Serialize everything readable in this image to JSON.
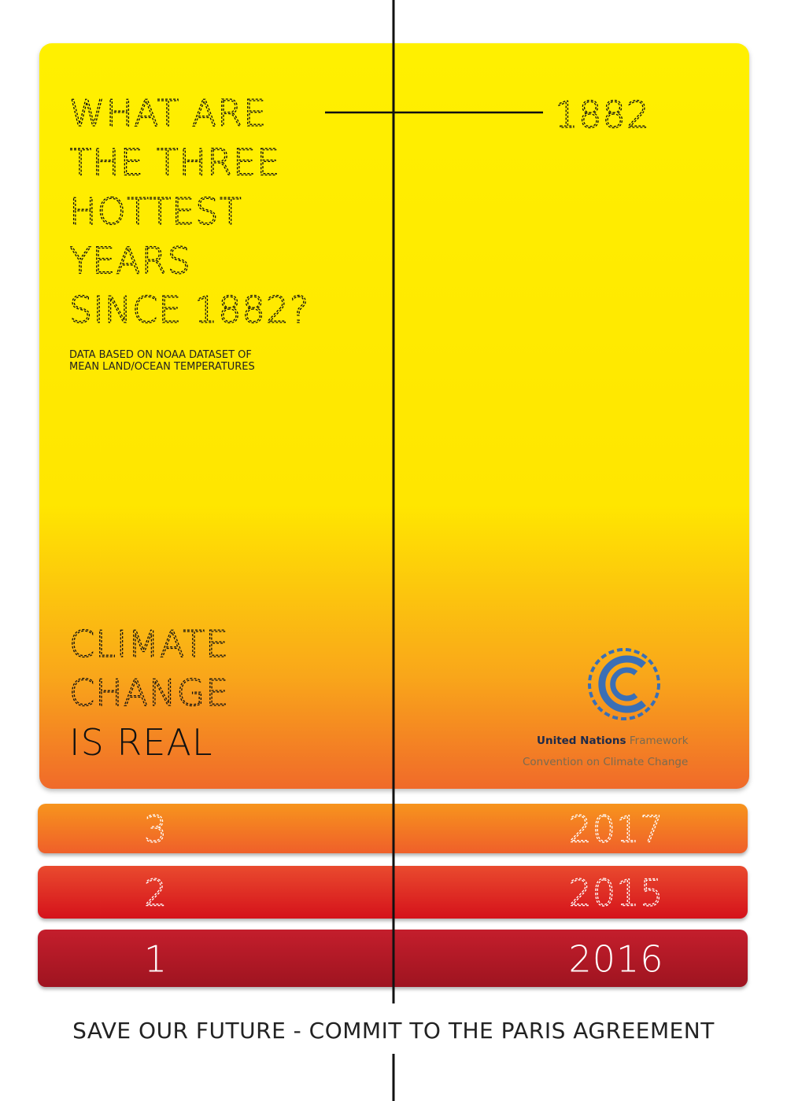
{
  "headline": [
    "WHAT ARE",
    "THE THREE",
    "HOTTEST",
    "YEARS",
    "SINCE 1882?"
  ],
  "note": [
    "DATA BASED ON NOAA DATASET OF",
    "MEAN LAND/OCEAN TEMPERATURES"
  ],
  "start_year": "1882",
  "slogan": [
    "CLIMATE",
    "CHANGE",
    "IS REAL"
  ],
  "organization": {
    "name": "United Nations",
    "line1_rest": "Framework",
    "line2": "Convention on Climate Change"
  },
  "ranking": [
    {
      "rank": "3",
      "year": "2017"
    },
    {
      "rank": "2",
      "year": "2015"
    },
    {
      "rank": "1",
      "year": "2016"
    }
  ],
  "footer": "SAVE OUR FUTURE - COMMIT TO THE PARIS AGREEMENT"
}
